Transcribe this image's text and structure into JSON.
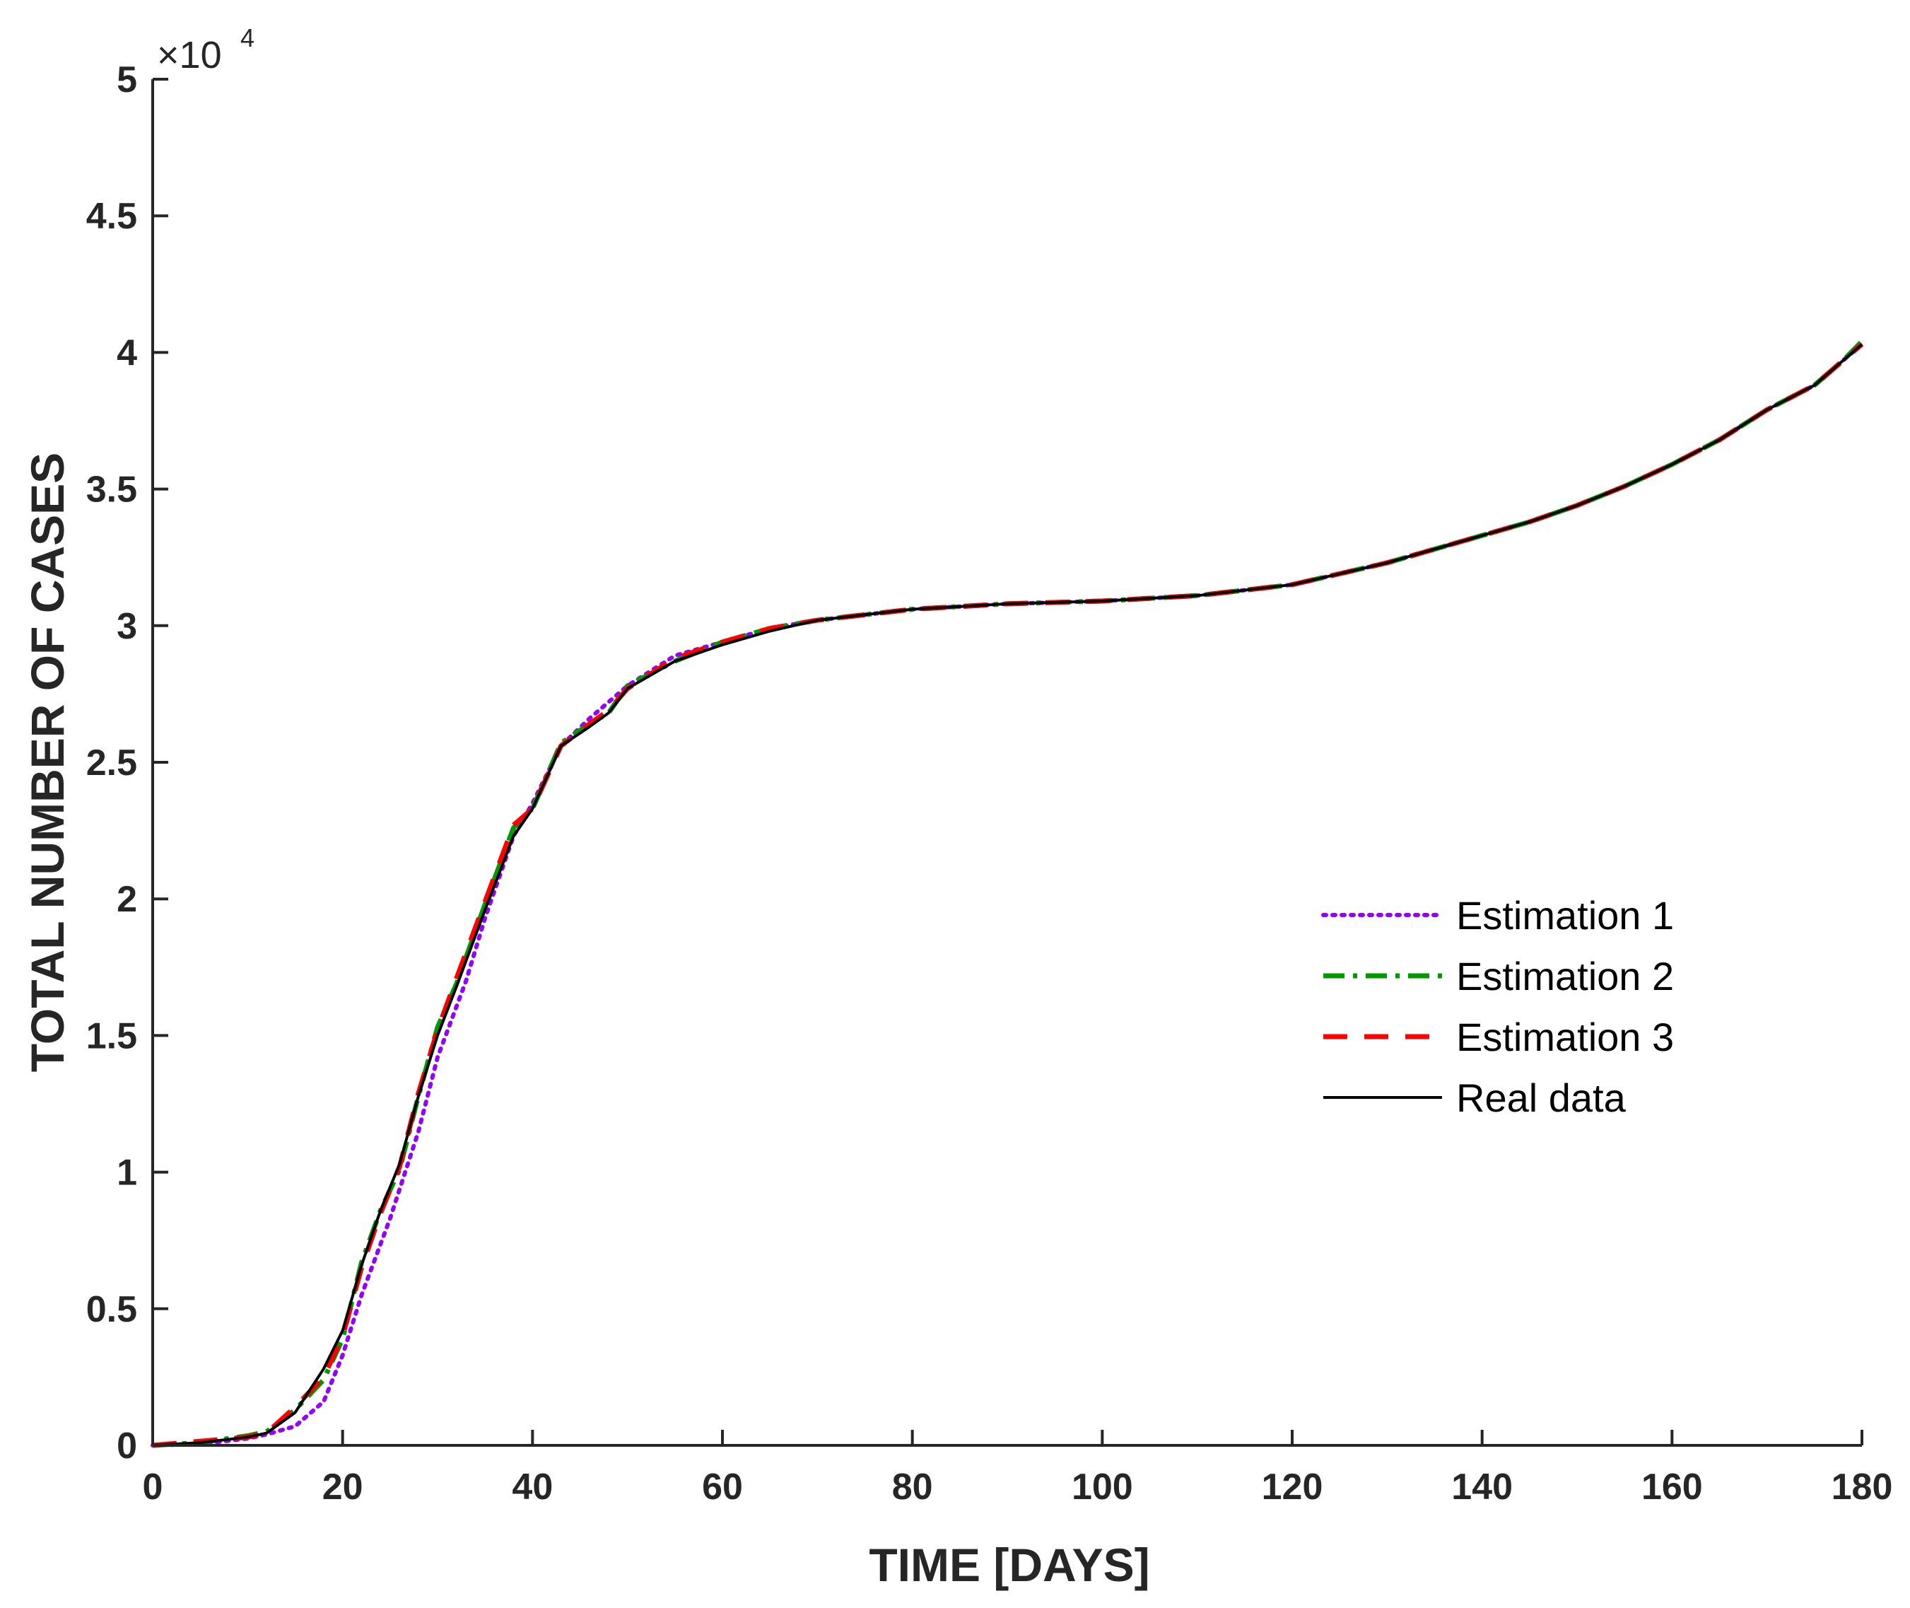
{
  "chart_data": {
    "type": "line",
    "title": "",
    "xlabel": "TIME [DAYS]",
    "ylabel": "TOTAL NUMBER OF CASES",
    "xlim": [
      0,
      180
    ],
    "ylim": [
      0,
      50000
    ],
    "x_ticks": [
      0,
      20,
      40,
      60,
      80,
      100,
      120,
      140,
      160,
      180
    ],
    "x_tick_labels": [
      "0",
      "20",
      "40",
      "60",
      "80",
      "100",
      "120",
      "140",
      "160",
      "180"
    ],
    "y_ticks": [
      0,
      5000,
      10000,
      15000,
      20000,
      25000,
      30000,
      35000,
      40000,
      45000,
      50000
    ],
    "y_tick_labels": [
      "0",
      "0.5",
      "1",
      "1.5",
      "2",
      "2.5",
      "3",
      "3.5",
      "4",
      "4.5",
      "5"
    ],
    "y_exponent_base": "×10",
    "y_exponent_power": "4",
    "grid": false,
    "legend_position": "center-right",
    "series": [
      {
        "name": "Estimation 1",
        "color": "#9400ff",
        "style": "dotted",
        "points": [
          [
            0,
            0
          ],
          [
            5,
            50
          ],
          [
            10,
            250
          ],
          [
            12,
            400
          ],
          [
            15,
            700
          ],
          [
            18,
            1600
          ],
          [
            20,
            3300
          ],
          [
            22,
            5500
          ],
          [
            25,
            8300
          ],
          [
            28,
            11500
          ],
          [
            30,
            14200
          ],
          [
            33,
            17000
          ],
          [
            35,
            19300
          ],
          [
            38,
            22300
          ],
          [
            40,
            23500
          ],
          [
            43,
            25600
          ],
          [
            46,
            26600
          ],
          [
            50,
            27800
          ],
          [
            55,
            28900
          ],
          [
            60,
            29400
          ],
          [
            65,
            29900
          ],
          [
            70,
            30200
          ],
          [
            80,
            30600
          ],
          [
            90,
            30800
          ],
          [
            100,
            30900
          ],
          [
            110,
            31100
          ],
          [
            115,
            31300
          ],
          [
            120,
            31500
          ],
          [
            125,
            31900
          ],
          [
            130,
            32300
          ],
          [
            135,
            32800
          ],
          [
            140,
            33300
          ],
          [
            145,
            33800
          ],
          [
            150,
            34400
          ],
          [
            155,
            35100
          ],
          [
            160,
            35900
          ],
          [
            165,
            36800
          ],
          [
            170,
            37900
          ],
          [
            175,
            38800
          ],
          [
            178,
            39700
          ],
          [
            180,
            40300
          ]
        ]
      },
      {
        "name": "Estimation 2",
        "color": "#009900",
        "style": "dashdot",
        "points": [
          [
            0,
            0
          ],
          [
            5,
            100
          ],
          [
            10,
            350
          ],
          [
            12,
            500
          ],
          [
            15,
            1300
          ],
          [
            18,
            2400
          ],
          [
            20,
            3900
          ],
          [
            22,
            6700
          ],
          [
            24,
            8600
          ],
          [
            26,
            10100
          ],
          [
            28,
            12800
          ],
          [
            30,
            15300
          ],
          [
            32,
            16900
          ],
          [
            35,
            19800
          ],
          [
            38,
            22600
          ],
          [
            40,
            23300
          ],
          [
            43,
            25700
          ],
          [
            46,
            26400
          ],
          [
            48,
            26800
          ],
          [
            50,
            27800
          ],
          [
            55,
            28700
          ],
          [
            60,
            29400
          ],
          [
            65,
            29900
          ],
          [
            70,
            30200
          ],
          [
            80,
            30600
          ],
          [
            90,
            30800
          ],
          [
            100,
            30900
          ],
          [
            110,
            31100
          ],
          [
            115,
            31300
          ],
          [
            120,
            31500
          ],
          [
            125,
            31900
          ],
          [
            130,
            32300
          ],
          [
            135,
            32800
          ],
          [
            140,
            33300
          ],
          [
            145,
            33800
          ],
          [
            150,
            34400
          ],
          [
            155,
            35100
          ],
          [
            160,
            35900
          ],
          [
            165,
            36800
          ],
          [
            170,
            37900
          ],
          [
            175,
            38800
          ],
          [
            178,
            39700
          ],
          [
            180,
            40400
          ]
        ]
      },
      {
        "name": "Estimation 3",
        "color": "#ff0000",
        "style": "dashed",
        "points": [
          [
            0,
            0
          ],
          [
            5,
            150
          ],
          [
            10,
            300
          ],
          [
            12,
            450
          ],
          [
            15,
            1400
          ],
          [
            18,
            2500
          ],
          [
            20,
            4000
          ],
          [
            22,
            6500
          ],
          [
            24,
            8500
          ],
          [
            26,
            10200
          ],
          [
            28,
            12900
          ],
          [
            30,
            15200
          ],
          [
            32,
            17100
          ],
          [
            35,
            19900
          ],
          [
            38,
            22700
          ],
          [
            40,
            23300
          ],
          [
            43,
            25600
          ],
          [
            46,
            26400
          ],
          [
            48,
            26900
          ],
          [
            50,
            27700
          ],
          [
            55,
            28800
          ],
          [
            60,
            29400
          ],
          [
            65,
            29900
          ],
          [
            70,
            30200
          ],
          [
            80,
            30600
          ],
          [
            90,
            30800
          ],
          [
            100,
            30900
          ],
          [
            110,
            31100
          ],
          [
            115,
            31300
          ],
          [
            120,
            31500
          ],
          [
            125,
            31900
          ],
          [
            130,
            32300
          ],
          [
            135,
            32800
          ],
          [
            140,
            33300
          ],
          [
            145,
            33800
          ],
          [
            150,
            34400
          ],
          [
            155,
            35100
          ],
          [
            160,
            35900
          ],
          [
            165,
            36800
          ],
          [
            170,
            37900
          ],
          [
            175,
            38800
          ],
          [
            178,
            39700
          ],
          [
            180,
            40300
          ]
        ]
      },
      {
        "name": "Real data",
        "color": "#000000",
        "style": "solid",
        "points": [
          [
            0,
            0
          ],
          [
            5,
            100
          ],
          [
            10,
            300
          ],
          [
            12,
            450
          ],
          [
            15,
            1200
          ],
          [
            18,
            2800
          ],
          [
            20,
            4200
          ],
          [
            22,
            6600
          ],
          [
            24,
            8600
          ],
          [
            26,
            10300
          ],
          [
            28,
            12800
          ],
          [
            30,
            15000
          ],
          [
            32,
            16800
          ],
          [
            35,
            19600
          ],
          [
            38,
            22300
          ],
          [
            40,
            23300
          ],
          [
            43,
            25600
          ],
          [
            46,
            26300
          ],
          [
            48,
            26800
          ],
          [
            50,
            27700
          ],
          [
            55,
            28700
          ],
          [
            60,
            29300
          ],
          [
            65,
            29800
          ],
          [
            70,
            30200
          ],
          [
            80,
            30600
          ],
          [
            90,
            30800
          ],
          [
            100,
            30900
          ],
          [
            110,
            31100
          ],
          [
            115,
            31300
          ],
          [
            120,
            31500
          ],
          [
            125,
            31900
          ],
          [
            130,
            32300
          ],
          [
            135,
            32800
          ],
          [
            140,
            33300
          ],
          [
            145,
            33800
          ],
          [
            150,
            34400
          ],
          [
            155,
            35100
          ],
          [
            160,
            35900
          ],
          [
            165,
            36800
          ],
          [
            170,
            37900
          ],
          [
            175,
            38800
          ],
          [
            178,
            39700
          ],
          [
            180,
            40300
          ]
        ]
      }
    ]
  }
}
